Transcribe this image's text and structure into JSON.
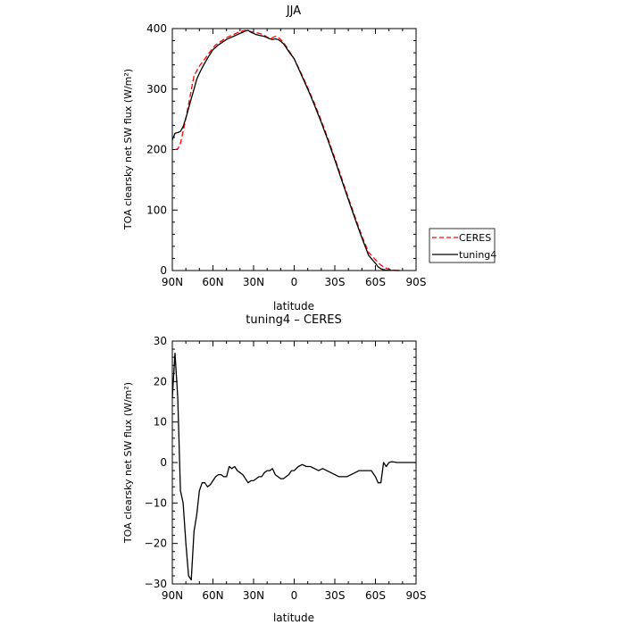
{
  "chart_data": [
    {
      "type": "line",
      "title": "JJA",
      "xlabel": "latitude",
      "ylabel": "TOA clearsky net SW flux (W/m²)",
      "xlim": [
        90,
        -90
      ],
      "ylim": [
        0,
        400
      ],
      "x_ticks": [
        90,
        60,
        30,
        0,
        -30,
        -60,
        -90
      ],
      "x_tick_labels": [
        "90N",
        "60N",
        "30N",
        "0",
        "30S",
        "60S",
        "90S"
      ],
      "y_ticks": [
        0,
        100,
        200,
        300,
        400
      ],
      "y_tick_labels": [
        "0",
        "100",
        "200",
        "300",
        "400"
      ],
      "legend_position": "right",
      "series": [
        {
          "name": "CERES",
          "color": "#ff0000",
          "style": "dashed",
          "x": [
            88,
            86,
            84,
            82,
            80,
            78,
            76,
            74,
            72,
            70,
            68,
            66,
            64,
            62,
            60,
            58,
            56,
            54,
            52,
            50,
            48,
            46,
            44,
            42,
            40,
            38,
            36,
            34,
            32,
            30,
            28,
            26,
            24,
            22,
            20,
            18,
            16,
            14,
            12,
            10,
            8,
            6,
            4,
            2,
            0,
            -5,
            -10,
            -15,
            -20,
            -25,
            -30,
            -35,
            -40,
            -45,
            -50,
            -55,
            -60,
            -62,
            -64,
            -66,
            -68,
            -70,
            -72,
            -74,
            -76,
            -78
          ],
          "y": [
            200,
            201,
            210,
            230,
            252,
            275,
            298,
            322,
            330,
            338,
            344,
            350,
            356,
            362,
            368,
            373,
            376,
            379,
            382,
            385,
            387,
            389,
            391,
            393,
            395,
            396,
            397,
            396,
            395,
            394,
            393,
            392,
            391,
            389,
            386,
            383,
            385,
            387,
            386,
            382,
            377,
            371,
            364,
            357,
            350,
            327,
            302,
            276,
            248,
            218,
            186,
            153,
            120,
            88,
            57,
            30,
            18,
            13,
            9,
            6,
            4,
            2,
            1,
            0.5,
            0.2,
            0
          ]
        },
        {
          "name": "tuning4",
          "color": "#000000",
          "style": "solid",
          "x": [
            90,
            88,
            86,
            84,
            82,
            80,
            78,
            76,
            74,
            72,
            70,
            68,
            66,
            64,
            62,
            60,
            58,
            56,
            54,
            52,
            50,
            48,
            46,
            44,
            42,
            40,
            38,
            36,
            34,
            32,
            30,
            28,
            26,
            24,
            22,
            20,
            18,
            16,
            14,
            12,
            10,
            8,
            6,
            4,
            2,
            0,
            -5,
            -10,
            -15,
            -20,
            -25,
            -30,
            -35,
            -40,
            -45,
            -50,
            -55,
            -60,
            -62,
            -64,
            -66,
            -68,
            -70,
            -72,
            -74,
            -76,
            -78
          ],
          "y": [
            216,
            227,
            228,
            230,
            238,
            252,
            268,
            284,
            300,
            316,
            326,
            335,
            343,
            351,
            358,
            365,
            369,
            373,
            376,
            379,
            382,
            384,
            386,
            388,
            390,
            392,
            394,
            396,
            397,
            394,
            392,
            390,
            389,
            388,
            387,
            385,
            383,
            382,
            383,
            382,
            379,
            375,
            369,
            362,
            356,
            350,
            325,
            300,
            273,
            245,
            215,
            183,
            150,
            117,
            85,
            54,
            25,
            12,
            6,
            3,
            1.5,
            0.8,
            0.4,
            0.2,
            0.1,
            0,
            0
          ]
        }
      ]
    },
    {
      "type": "line",
      "title": "tuning4 – CERES",
      "xlabel": "latitude",
      "ylabel": "TOA clearsky net SW flux (W/m²)",
      "xlim": [
        90,
        -90
      ],
      "ylim": [
        -30,
        30
      ],
      "x_ticks": [
        90,
        60,
        30,
        0,
        -30,
        -60,
        -90
      ],
      "x_tick_labels": [
        "90N",
        "60N",
        "30N",
        "0",
        "30S",
        "60S",
        "90S"
      ],
      "y_ticks": [
        -30,
        -20,
        -10,
        0,
        10,
        20,
        30
      ],
      "y_tick_labels": [
        "−30",
        "−20",
        "−10",
        "0",
        "10",
        "20",
        "30"
      ],
      "series": [
        {
          "name": "",
          "color": "#000000",
          "style": "solid",
          "x": [
            90,
            88,
            86,
            84,
            82,
            80,
            78,
            76,
            74,
            72,
            70,
            68,
            66,
            64,
            62,
            60,
            58,
            56,
            54,
            52,
            50,
            48,
            46,
            44,
            42,
            40,
            38,
            36,
            34,
            32,
            30,
            28,
            26,
            24,
            22,
            20,
            18,
            16,
            14,
            12,
            10,
            8,
            6,
            4,
            2,
            0,
            -3,
            -6,
            -9,
            -12,
            -15,
            -18,
            -21,
            -24,
            -27,
            -30,
            -33,
            -36,
            -39,
            -42,
            -45,
            -48,
            -51,
            -54,
            -57,
            -60,
            -62,
            -64,
            -66,
            -68,
            -70,
            -72,
            -74,
            -76,
            -78,
            -80,
            -84,
            -88,
            -90
          ],
          "y": [
            16,
            27,
            16,
            -7,
            -10,
            -20,
            -28,
            -29,
            -17,
            -13,
            -7,
            -5,
            -5,
            -6,
            -5.5,
            -4.5,
            -3.5,
            -3,
            -3,
            -3.5,
            -3.5,
            -1,
            -1.5,
            -1,
            -2,
            -2.5,
            -3,
            -4,
            -5,
            -4.5,
            -4.5,
            -4,
            -3.5,
            -3.5,
            -2.5,
            -2,
            -2,
            -1.5,
            -3,
            -3.5,
            -4,
            -4,
            -3.5,
            -3,
            -2,
            -2,
            -1,
            -0.5,
            -1,
            -1,
            -1.5,
            -2,
            -1.5,
            -2,
            -2.5,
            -3,
            -3.5,
            -3.5,
            -3.5,
            -3,
            -2.5,
            -2,
            -2,
            -2,
            -2,
            -3.5,
            -5,
            -5,
            0,
            -1,
            0,
            0.2,
            0.1,
            0,
            0,
            0,
            0,
            0,
            0
          ]
        }
      ]
    }
  ]
}
